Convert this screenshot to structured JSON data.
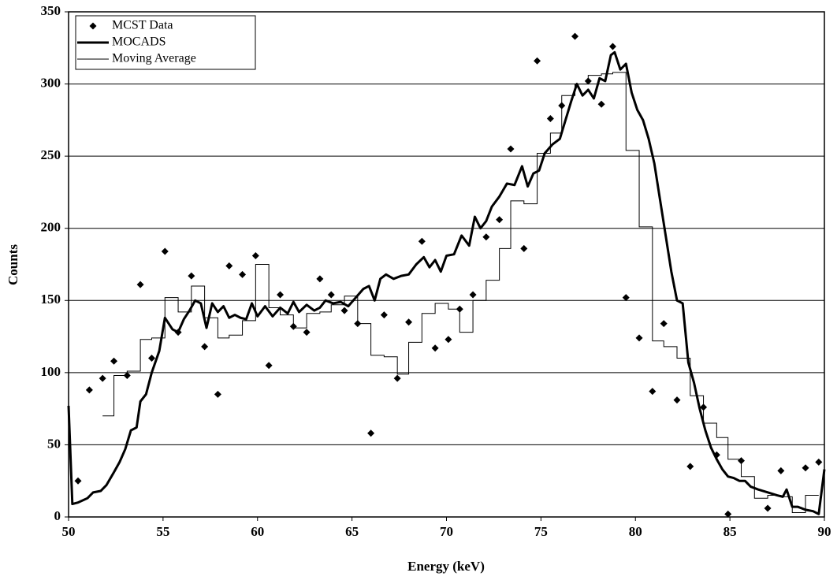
{
  "chart_data": {
    "type": "scatter_line",
    "xlabel": "Energy (keV)",
    "ylabel": "Counts",
    "xlim": [
      50,
      90
    ],
    "ylim": [
      0,
      350
    ],
    "xticks": [
      50,
      55,
      60,
      65,
      70,
      75,
      80,
      85,
      90
    ],
    "yticks": [
      0,
      50,
      100,
      150,
      200,
      250,
      300,
      350
    ],
    "grid": true,
    "legend": "top-left",
    "series": [
      {
        "name": "MCST Data",
        "kind": "scatter",
        "color": "#000000",
        "x": [
          50.5,
          51.1,
          51.8,
          52.4,
          53.1,
          53.8,
          54.4,
          55.1,
          55.8,
          56.5,
          57.2,
          57.9,
          58.5,
          59.2,
          59.9,
          60.6,
          61.2,
          61.9,
          62.6,
          63.3,
          63.9,
          64.6,
          65.3,
          66.0,
          66.7,
          67.4,
          68.0,
          68.7,
          69.4,
          70.1,
          70.7,
          71.4,
          72.1,
          72.8,
          73.4,
          74.1,
          74.8,
          75.5,
          76.1,
          76.8,
          77.5,
          78.2,
          78.8,
          79.5,
          80.2,
          80.9,
          81.5,
          82.2,
          82.9,
          83.6,
          84.3,
          84.9,
          85.6,
          87.0,
          87.7,
          89.0,
          89.7
        ],
        "values": [
          25,
          88,
          96,
          108,
          98,
          161,
          110,
          184,
          128,
          167,
          118,
          85,
          174,
          168,
          181,
          105,
          154,
          132,
          128,
          165,
          154,
          143,
          134,
          58,
          140,
          96,
          135,
          191,
          117,
          123,
          144,
          154,
          194,
          206,
          255,
          186,
          316,
          276,
          285,
          333,
          302,
          286,
          326,
          152,
          124,
          87,
          134,
          81,
          35,
          76,
          43,
          2,
          39,
          6,
          32,
          34,
          38
        ]
      },
      {
        "name": "MOCADS",
        "kind": "line",
        "color": "#000000",
        "x": [
          50.0,
          50.2,
          50.5,
          51.0,
          51.3,
          51.7,
          52.0,
          52.4,
          52.7,
          53.0,
          53.3,
          53.6,
          53.8,
          54.1,
          54.4,
          54.8,
          55.1,
          55.5,
          55.8,
          56.1,
          56.4,
          56.7,
          57.0,
          57.3,
          57.6,
          57.9,
          58.2,
          58.5,
          58.8,
          59.1,
          59.4,
          59.7,
          60.0,
          60.4,
          60.8,
          61.2,
          61.6,
          61.9,
          62.2,
          62.6,
          63.0,
          63.3,
          63.6,
          64.0,
          64.4,
          64.8,
          65.2,
          65.6,
          65.9,
          66.2,
          66.5,
          66.8,
          67.2,
          67.6,
          68.0,
          68.4,
          68.8,
          69.1,
          69.4,
          69.7,
          70.0,
          70.4,
          70.8,
          71.2,
          71.5,
          71.8,
          72.1,
          72.4,
          72.8,
          73.2,
          73.6,
          74.0,
          74.3,
          74.6,
          74.9,
          75.2,
          75.6,
          76.0,
          76.3,
          76.6,
          76.9,
          77.2,
          77.5,
          77.8,
          78.1,
          78.4,
          78.7,
          78.9,
          79.2,
          79.5,
          79.8,
          80.1,
          80.4,
          80.7,
          81.0,
          81.3,
          81.6,
          81.9,
          82.2,
          82.5,
          82.8,
          83.1,
          83.4,
          83.7,
          84.0,
          84.3,
          84.6,
          84.9,
          85.2,
          85.5,
          85.8,
          86.1,
          86.5,
          87.0,
          87.5,
          87.8,
          88.0,
          88.3,
          88.6,
          89.0,
          89.4,
          89.7,
          90.0
        ],
        "values": [
          77,
          9,
          10,
          13,
          17,
          18,
          22,
          31,
          38,
          47,
          60,
          62,
          80,
          85,
          100,
          115,
          138,
          130,
          128,
          137,
          143,
          150,
          148,
          131,
          148,
          142,
          146,
          138,
          140,
          138,
          137,
          148,
          139,
          146,
          139,
          145,
          141,
          149,
          142,
          147,
          143,
          145,
          150,
          148,
          149,
          146,
          152,
          158,
          160,
          150,
          165,
          168,
          165,
          167,
          168,
          175,
          180,
          173,
          178,
          170,
          181,
          182,
          195,
          188,
          208,
          200,
          205,
          215,
          222,
          231,
          230,
          243,
          229,
          238,
          240,
          252,
          258,
          262,
          275,
          288,
          300,
          292,
          296,
          290,
          304,
          302,
          320,
          322,
          310,
          314,
          294,
          282,
          275,
          262,
          245,
          220,
          195,
          170,
          150,
          148,
          107,
          93,
          75,
          60,
          48,
          40,
          33,
          28,
          27,
          25,
          25,
          21,
          19,
          17,
          15,
          14,
          19,
          7,
          7,
          5,
          4,
          2,
          33
        ]
      },
      {
        "name": "Moving Average",
        "kind": "step",
        "color": "#000000",
        "x": [
          51.8,
          52.4,
          53.1,
          53.8,
          54.4,
          55.1,
          55.8,
          56.5,
          57.2,
          57.9,
          58.5,
          59.2,
          59.9,
          60.6,
          61.2,
          61.9,
          62.6,
          63.3,
          63.9,
          64.6,
          65.3,
          66.0,
          66.7,
          67.4,
          68.0,
          68.7,
          69.4,
          70.1,
          70.7,
          71.4,
          72.1,
          72.8,
          73.4,
          74.1,
          74.8,
          75.5,
          76.1,
          76.8,
          77.5,
          78.2,
          78.8,
          79.5,
          80.2,
          80.9,
          81.5,
          82.2,
          82.9,
          83.6,
          84.3,
          84.9,
          85.6,
          86.3,
          87.0,
          87.7,
          88.3,
          89.0,
          89.7
        ],
        "values": [
          70,
          98,
          101,
          123,
          124,
          152,
          142,
          160,
          138,
          124,
          126,
          136,
          175,
          145,
          140,
          131,
          141,
          142,
          147,
          153,
          134,
          112,
          111,
          99,
          121,
          141,
          148,
          144,
          128,
          150,
          164,
          186,
          219,
          217,
          252,
          266,
          292,
          300,
          306,
          307,
          308,
          254,
          201,
          122,
          118,
          110,
          84,
          65,
          55,
          40,
          28,
          13,
          15,
          14,
          3,
          15,
          15
        ]
      }
    ]
  }
}
